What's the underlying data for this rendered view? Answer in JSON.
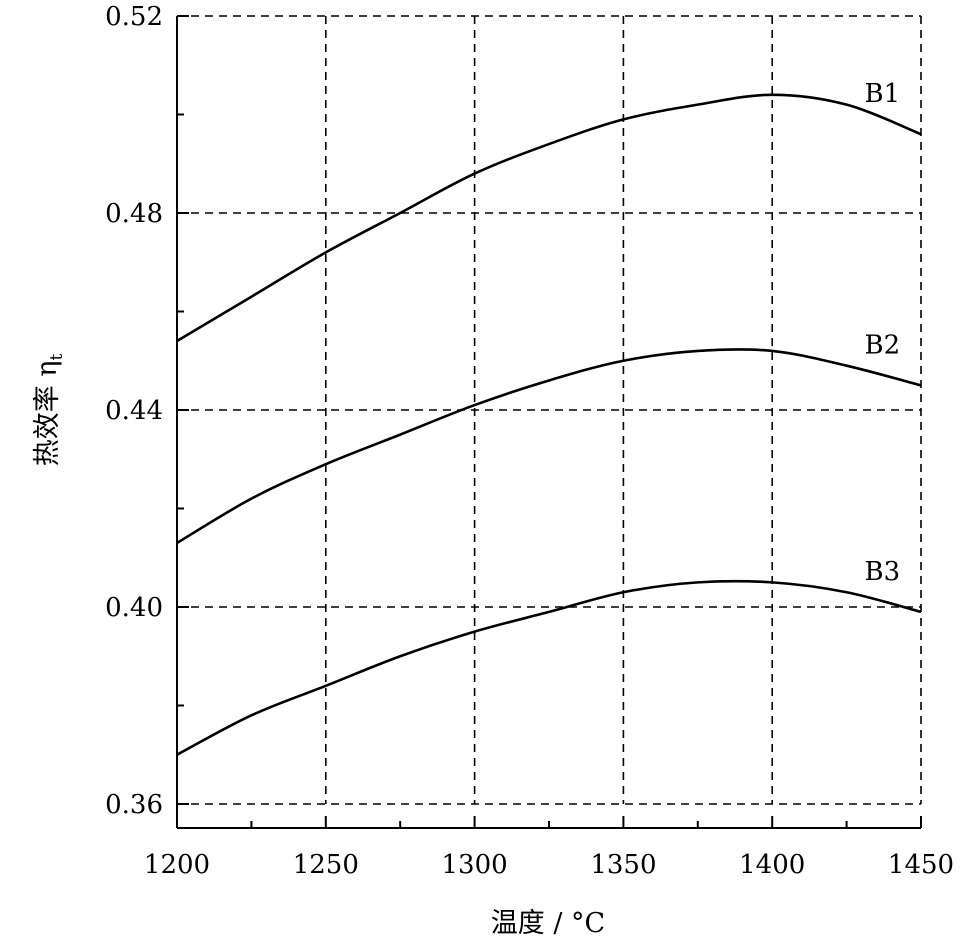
{
  "chart_data": {
    "type": "line",
    "xlabel": "温度 / °C",
    "ylabel": "热效率 η",
    "ylabel_subscript": "t",
    "xlim": [
      1200,
      1450
    ],
    "ylim": [
      0.36,
      0.52
    ],
    "x_ticks": [
      1200,
      1250,
      1300,
      1350,
      1400,
      1450
    ],
    "x_tick_labels": [
      "1200",
      "1250",
      "1300",
      "1350",
      "1400",
      "1450"
    ],
    "x_minor_ticks": [
      1225,
      1275,
      1325,
      1375,
      1425
    ],
    "y_ticks": [
      0.36,
      0.4,
      0.44,
      0.48,
      0.52
    ],
    "y_tick_labels": [
      "0.36",
      "0.40",
      "0.44",
      "0.48",
      "0.52"
    ],
    "y_minor_ticks": [
      0.38,
      0.42,
      0.46,
      0.5
    ],
    "grid": true,
    "series": [
      {
        "name": "B1",
        "x": [
          1200,
          1225,
          1250,
          1275,
          1300,
          1325,
          1350,
          1375,
          1400,
          1425,
          1450
        ],
        "values": [
          0.454,
          0.463,
          0.472,
          0.48,
          0.488,
          0.494,
          0.499,
          0.502,
          0.504,
          0.502,
          0.496
        ]
      },
      {
        "name": "B2",
        "x": [
          1200,
          1225,
          1250,
          1275,
          1300,
          1325,
          1350,
          1375,
          1400,
          1425,
          1450
        ],
        "values": [
          0.413,
          0.422,
          0.429,
          0.435,
          0.441,
          0.446,
          0.45,
          0.452,
          0.452,
          0.449,
          0.445
        ]
      },
      {
        "name": "B3",
        "x": [
          1200,
          1225,
          1250,
          1275,
          1300,
          1325,
          1350,
          1375,
          1400,
          1425,
          1450
        ],
        "values": [
          0.37,
          0.378,
          0.384,
          0.39,
          0.395,
          0.399,
          0.403,
          0.405,
          0.405,
          0.403,
          0.399
        ]
      }
    ]
  }
}
